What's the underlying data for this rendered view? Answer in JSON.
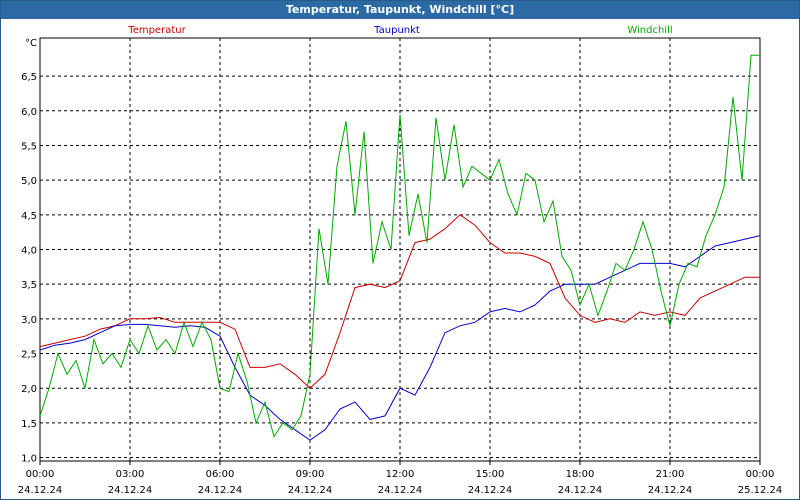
{
  "window_title": "Temperatur, Taupunkt, Windchill [°C]",
  "chart_data": {
    "type": "line",
    "title": "Temperatur, Taupunkt, Windchill [°C]",
    "ylabel": "°C",
    "ylim": [
      0.95,
      7.05
    ],
    "xlim": [
      0,
      24
    ],
    "grid": true,
    "y_ticks": [
      "1.0",
      "1.5",
      "2.0",
      "2.5",
      "3.0",
      "3.5",
      "4.0",
      "4.5",
      "5.0",
      "5.5",
      "6.0",
      "6.5"
    ],
    "y_tick_labels": [
      "1,0",
      "1,5",
      "2,0",
      "2,5",
      "3,0",
      "3,5",
      "4,0",
      "4,5",
      "5,0",
      "5,5",
      "6,0",
      "6,5"
    ],
    "x_ticks": [
      {
        "time": "00:00",
        "date": "24.12.24"
      },
      {
        "time": "03:00",
        "date": "24.12.24"
      },
      {
        "time": "06:00",
        "date": "24.12.24"
      },
      {
        "time": "09:00",
        "date": "24.12.24"
      },
      {
        "time": "12:00",
        "date": "24.12.24"
      },
      {
        "time": "15:00",
        "date": "24.12.24"
      },
      {
        "time": "18:00",
        "date": "24.12.24"
      },
      {
        "time": "21:00",
        "date": "24.12.24"
      },
      {
        "time": "00:00",
        "date": "25.12.24"
      }
    ],
    "series": [
      {
        "name": "Temperatur",
        "color": "#cc0000",
        "x": [
          0,
          0.5,
          1,
          1.5,
          2,
          2.5,
          3,
          3.5,
          4,
          4.5,
          5,
          5.5,
          6,
          6.5,
          7,
          7.5,
          8,
          8.5,
          9,
          9.5,
          10,
          10.5,
          11,
          11.5,
          12,
          12.5,
          13,
          13.5,
          14,
          14.5,
          15,
          15.5,
          16,
          16.5,
          17,
          17.5,
          18,
          18.5,
          19,
          19.5,
          20,
          20.5,
          21,
          21.5,
          22,
          22.5,
          23,
          23.5,
          24
        ],
        "values": [
          2.6,
          2.65,
          2.7,
          2.75,
          2.85,
          2.9,
          3.0,
          3.0,
          3.02,
          2.95,
          2.95,
          2.95,
          2.95,
          2.85,
          2.3,
          2.3,
          2.35,
          2.2,
          2.0,
          2.2,
          2.8,
          3.45,
          3.5,
          3.45,
          3.55,
          4.1,
          4.15,
          4.3,
          4.5,
          4.35,
          4.1,
          3.95,
          3.95,
          3.9,
          3.8,
          3.3,
          3.05,
          2.95,
          3.0,
          2.95,
          3.1,
          3.05,
          3.1,
          3.05,
          3.3,
          3.4,
          3.5,
          3.6,
          3.6
        ]
      },
      {
        "name": "Taupunkt",
        "color": "#0000cc",
        "x": [
          0,
          0.5,
          1,
          1.5,
          2,
          2.5,
          3,
          3.5,
          4,
          4.5,
          5,
          5.5,
          6,
          6.5,
          7,
          7.5,
          8,
          8.5,
          9,
          9.5,
          10,
          10.5,
          11,
          11.5,
          12,
          12.5,
          13,
          13.5,
          14,
          14.5,
          15,
          15.5,
          16,
          16.5,
          17,
          17.5,
          18,
          18.5,
          19,
          19.5,
          20,
          20.5,
          21,
          21.5,
          22,
          22.5,
          23,
          23.5,
          24
        ],
        "values": [
          2.55,
          2.62,
          2.65,
          2.7,
          2.8,
          2.9,
          2.92,
          2.92,
          2.9,
          2.88,
          2.9,
          2.88,
          2.75,
          2.3,
          1.9,
          1.75,
          1.55,
          1.4,
          1.25,
          1.4,
          1.7,
          1.8,
          1.55,
          1.6,
          2.0,
          1.9,
          2.3,
          2.8,
          2.9,
          2.95,
          3.1,
          3.15,
          3.1,
          3.2,
          3.4,
          3.5,
          3.5,
          3.5,
          3.6,
          3.7,
          3.8,
          3.8,
          3.8,
          3.75,
          3.9,
          4.05,
          4.1,
          4.15,
          4.2
        ]
      },
      {
        "name": "Windchill",
        "color": "#00aa00",
        "x": [
          0,
          0.3,
          0.6,
          0.9,
          1.2,
          1.5,
          1.8,
          2.1,
          2.4,
          2.7,
          3,
          3.3,
          3.6,
          3.9,
          4.2,
          4.5,
          4.8,
          5.1,
          5.4,
          5.7,
          6,
          6.3,
          6.6,
          6.9,
          7.2,
          7.5,
          7.8,
          8.1,
          8.4,
          8.7,
          9,
          9.3,
          9.6,
          9.9,
          10.2,
          10.5,
          10.8,
          11.1,
          11.4,
          11.7,
          12,
          12.3,
          12.6,
          12.9,
          13.2,
          13.5,
          13.8,
          14.1,
          14.4,
          14.7,
          15,
          15.3,
          15.6,
          15.9,
          16.2,
          16.5,
          16.8,
          17.1,
          17.4,
          17.7,
          18,
          18.3,
          18.6,
          18.9,
          19.2,
          19.5,
          19.8,
          20.1,
          20.4,
          20.7,
          21,
          21.3,
          21.6,
          21.9,
          22.2,
          22.5,
          22.8,
          23.1,
          23.4,
          23.7,
          24
        ],
        "values": [
          1.6,
          2.0,
          2.5,
          2.2,
          2.4,
          2.0,
          2.7,
          2.35,
          2.5,
          2.3,
          2.7,
          2.5,
          2.9,
          2.55,
          2.7,
          2.5,
          2.95,
          2.6,
          2.95,
          2.7,
          2.0,
          1.95,
          2.5,
          2.1,
          1.5,
          1.8,
          1.3,
          1.5,
          1.4,
          1.6,
          2.2,
          4.3,
          3.5,
          5.2,
          5.85,
          4.5,
          5.7,
          3.8,
          4.4,
          4.0,
          5.95,
          4.2,
          4.8,
          4.1,
          5.9,
          5.0,
          5.8,
          4.9,
          5.2,
          5.1,
          5.0,
          5.3,
          4.8,
          4.5,
          5.1,
          5.0,
          4.4,
          4.7,
          3.9,
          3.7,
          3.2,
          3.5,
          3.05,
          3.4,
          3.8,
          3.7,
          4.0,
          4.4,
          4.0,
          3.4,
          2.9,
          3.5,
          3.8,
          3.75,
          4.2,
          4.5,
          4.9,
          6.2,
          5.0,
          6.8,
          6.8
        ]
      }
    ]
  }
}
